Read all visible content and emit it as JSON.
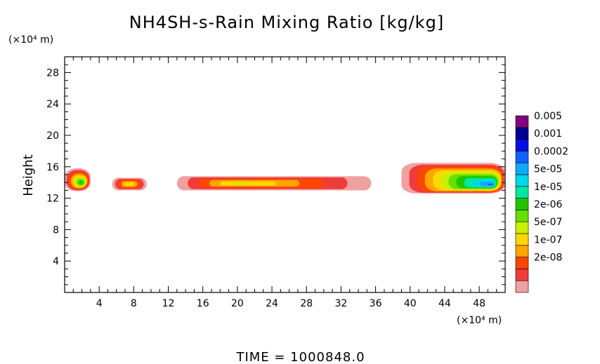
{
  "chart_data": {
    "type": "heatmap",
    "title": "NH4SH-s-Rain Mixing Ratio [kg/kg]",
    "xlabel": "",
    "x_unit": "(×10⁴ m)",
    "ylabel": "Height",
    "y_unit": "(×10⁴ m)",
    "xlim": [
      0,
      51
    ],
    "ylim": [
      0,
      30
    ],
    "x_ticks": [
      4,
      8,
      12,
      16,
      20,
      24,
      28,
      32,
      36,
      40,
      44,
      48
    ],
    "y_ticks": [
      4,
      8,
      12,
      16,
      20,
      24,
      28
    ],
    "grid": false,
    "colorbar": {
      "position": "right",
      "labels": [
        "0.005",
        "0.001",
        "0.0002",
        "5e-05",
        "1e-05",
        "2e-06",
        "5e-07",
        "1e-07",
        "2e-08"
      ],
      "colors": [
        "#f0a0a0",
        "#ee3b3b",
        "#ff4500",
        "#ffa500",
        "#ffd700",
        "#c8f000",
        "#66e000",
        "#22c400",
        "#00e8a0",
        "#00d8e8",
        "#10a8ff",
        "#1060ff",
        "#0010e0",
        "#000090",
        "#800080"
      ]
    },
    "regions": [
      {
        "x": [
          0,
          3
        ],
        "y": [
          12.9,
          15.8
        ],
        "peak_level": 8,
        "peak_x": 2,
        "peak_y": 13.9
      },
      {
        "x": [
          5.5,
          9.5
        ],
        "y": [
          13.0,
          14.6
        ],
        "peak_level": 5,
        "peak_x": 7.5,
        "peak_y": 13.8
      },
      {
        "x": [
          13,
          35.5
        ],
        "y": [
          13.0,
          14.8
        ],
        "peak_level": 5,
        "peak_x": 20,
        "peak_y": 13.9
      },
      {
        "x": [
          39,
          51
        ],
        "y": [
          12.6,
          16.5
        ],
        "peak_level": 11,
        "peak_x": 49.5,
        "peak_y": 13.7
      }
    ],
    "time_label": "TIME  =  1000848.0"
  }
}
